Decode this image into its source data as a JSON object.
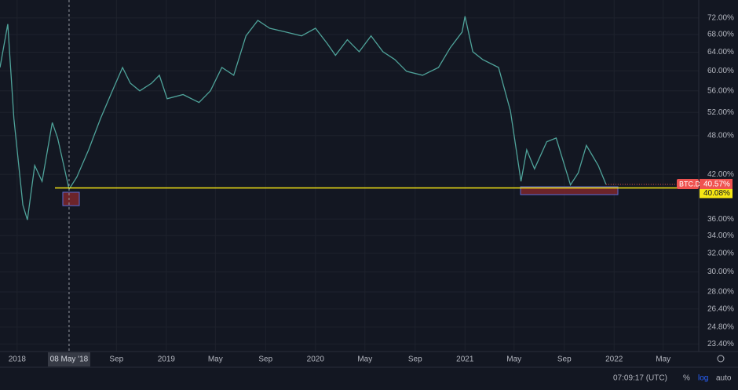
{
  "chart_data": {
    "type": "line",
    "symbol": "BTC.D",
    "color": "#4fa39a",
    "log_scale": true,
    "grid": true,
    "x": [
      "2017-11-20",
      "2017-12-09",
      "2017-12-24",
      "2018-01-15",
      "2018-01-26",
      "2018-02-13",
      "2018-03-03",
      "2018-03-28",
      "2018-04-10",
      "2018-05-08",
      "2018-05-27",
      "2018-06-25",
      "2018-07-24",
      "2018-08-22",
      "2018-09-16",
      "2018-10-05",
      "2018-10-28",
      "2018-11-26",
      "2018-12-15",
      "2019-01-03",
      "2019-02-11",
      "2019-03-22",
      "2019-04-19",
      "2019-05-17",
      "2019-06-15",
      "2019-07-15",
      "2019-08-13",
      "2019-09-11",
      "2019-10-20",
      "2019-11-28",
      "2020-01-01",
      "2020-01-30",
      "2020-02-19",
      "2020-03-19",
      "2020-04-17",
      "2020-05-16",
      "2020-06-14",
      "2020-07-13",
      "2020-08-11",
      "2020-09-19",
      "2020-10-28",
      "2020-11-26",
      "2020-12-25",
      "2021-01-01",
      "2021-01-20",
      "2021-02-13",
      "2021-03-24",
      "2021-04-22",
      "2021-05-18",
      "2021-06-01",
      "2021-06-20",
      "2021-07-20",
      "2021-08-12",
      "2021-09-16",
      "2021-10-05",
      "2021-10-25",
      "2021-11-23",
      "2021-12-12"
    ],
    "values": [
      60.7,
      70.5,
      50.9,
      37.8,
      35.9,
      43.3,
      41.0,
      50.2,
      47.6,
      39.9,
      41.6,
      45.7,
      50.9,
      56.0,
      60.7,
      57.5,
      56.0,
      57.5,
      59.1,
      54.5,
      55.3,
      53.8,
      56.0,
      60.7,
      59.1,
      67.7,
      71.4,
      69.5,
      68.6,
      67.7,
      69.5,
      65.9,
      63.3,
      66.8,
      64.1,
      67.7,
      64.1,
      62.4,
      59.9,
      59.1,
      60.7,
      65.0,
      68.6,
      72.4,
      64.1,
      62.4,
      60.7,
      52.3,
      41.0,
      45.7,
      42.8,
      47.0,
      47.6,
      40.5,
      42.2,
      46.4,
      43.3,
      40.57
    ],
    "xlim": [
      "2017-11-20",
      "2022-07-27"
    ],
    "xticks": [
      {
        "value": "2018-01-01",
        "label": "2018"
      },
      {
        "value": "2018-09-01",
        "label": "Sep"
      },
      {
        "value": "2019-01-01",
        "label": "2019"
      },
      {
        "value": "2019-05-01",
        "label": "May"
      },
      {
        "value": "2019-09-01",
        "label": "Sep"
      },
      {
        "value": "2020-01-01",
        "label": "2020"
      },
      {
        "value": "2020-05-01",
        "label": "May"
      },
      {
        "value": "2020-09-01",
        "label": "Sep"
      },
      {
        "value": "2021-01-01",
        "label": "2021"
      },
      {
        "value": "2021-05-01",
        "label": "May"
      },
      {
        "value": "2021-09-01",
        "label": "Sep"
      },
      {
        "value": "2022-01-01",
        "label": "2022"
      },
      {
        "value": "2022-05-01",
        "label": "May"
      }
    ],
    "ylim": [
      22.8,
      76.6
    ],
    "yticks": [
      {
        "value": 72,
        "label": "72.00%"
      },
      {
        "value": 68,
        "label": "68.00%"
      },
      {
        "value": 64,
        "label": "64.00%"
      },
      {
        "value": 60,
        "label": "60.00%"
      },
      {
        "value": 56,
        "label": "56.00%"
      },
      {
        "value": 52,
        "label": "52.00%"
      },
      {
        "value": 48,
        "label": "48.00%"
      },
      {
        "value": 42,
        "label": "42.00%"
      },
      {
        "value": 36,
        "label": "36.00%"
      },
      {
        "value": 34,
        "label": "34.00%"
      },
      {
        "value": 32,
        "label": "32.00%"
      },
      {
        "value": 30,
        "label": "30.00%"
      },
      {
        "value": 28,
        "label": "28.00%"
      },
      {
        "value": 26.4,
        "label": "26.40%"
      },
      {
        "value": 24.8,
        "label": "24.80%"
      },
      {
        "value": 23.4,
        "label": "23.40%"
      }
    ],
    "crosshair": {
      "x": "2018-05-08",
      "label": "08 May '18"
    },
    "horizontal_line": {
      "value": 40.08,
      "label": "40.08%",
      "color": "#f5e614"
    },
    "last_price": {
      "value": 40.57,
      "label": "40.57%",
      "color": "#ef5350"
    }
  },
  "toolbar": {
    "time": "07:09:17 (UTC)",
    "percent": "%",
    "log": "log",
    "auto": "auto"
  }
}
